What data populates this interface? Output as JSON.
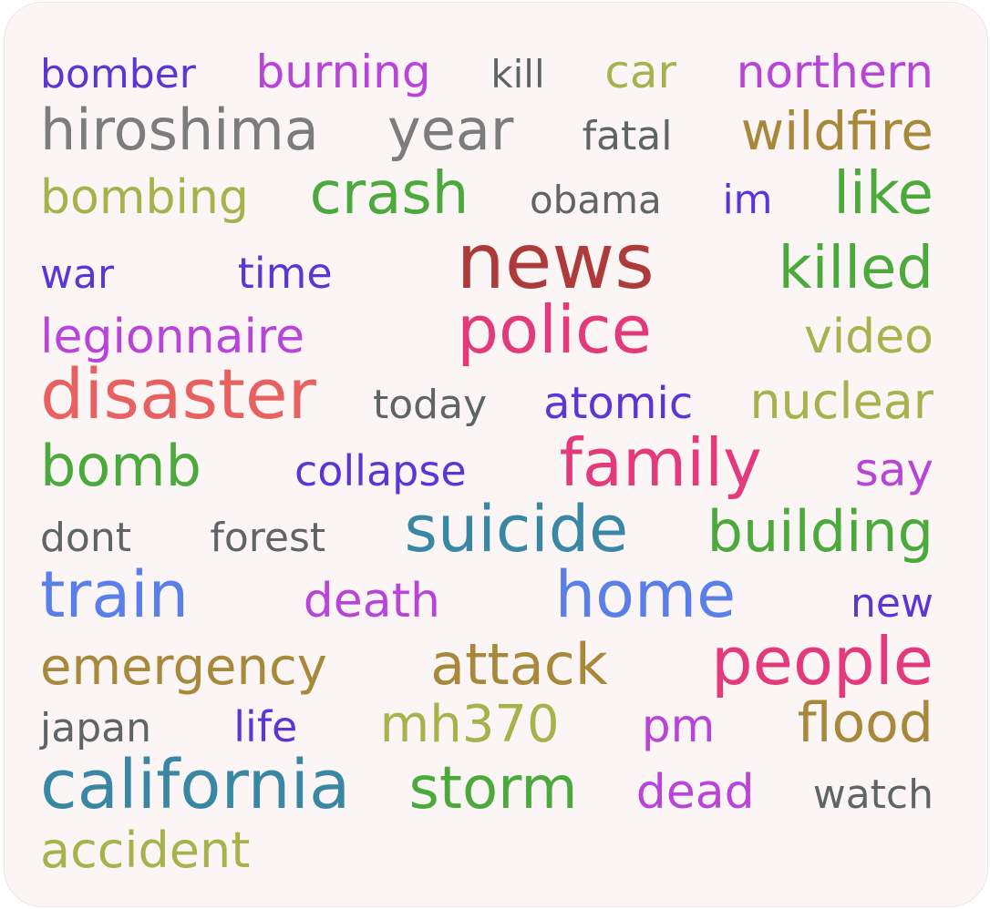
{
  "rows": [
    [
      {
        "text": "bomber",
        "color": "#5b35d6"
      },
      {
        "text": "burning",
        "color": "#b844d8"
      },
      {
        "text": "kill",
        "color": "#5f6466"
      },
      {
        "text": "car",
        "color": "#aab04c"
      },
      {
        "text": "northern",
        "color": "#b844d8"
      }
    ],
    [
      {
        "text": "hiroshima",
        "color": "#7c7c7c"
      },
      {
        "text": "year",
        "color": "#7c7c7c"
      },
      {
        "text": "fatal",
        "color": "#5f6466"
      },
      {
        "text": "wildfire",
        "color": "#a8893b"
      }
    ],
    [
      {
        "text": "bombing",
        "color": "#aab04c"
      },
      {
        "text": "crash",
        "color": "#4caa3c"
      },
      {
        "text": "obama",
        "color": "#5f6466"
      },
      {
        "text": "im",
        "color": "#5b35d6"
      },
      {
        "text": "like",
        "color": "#4caa3c"
      }
    ],
    [
      {
        "text": "war",
        "color": "#5b35d6"
      },
      {
        "text": "time",
        "color": "#5b35d6"
      },
      {
        "text": "news",
        "color": "#ac3b39"
      },
      {
        "text": "killed",
        "color": "#4caa3c"
      }
    ],
    [
      {
        "text": "legionnaire",
        "color": "#b844d8"
      },
      {
        "text": "police",
        "color": "#e23a7b"
      },
      {
        "text": "video",
        "color": "#aab04c"
      }
    ],
    [
      {
        "text": "disaster",
        "color": "#e86161"
      },
      {
        "text": "today",
        "color": "#5f6466"
      },
      {
        "text": "atomic",
        "color": "#5b35d6"
      },
      {
        "text": "nuclear",
        "color": "#aab04c"
      }
    ],
    [
      {
        "text": "bomb",
        "color": "#4caa3c"
      },
      {
        "text": "collapse",
        "color": "#5b35d6"
      },
      {
        "text": "family",
        "color": "#e23a7b"
      },
      {
        "text": "say",
        "color": "#b844d8"
      }
    ],
    [
      {
        "text": "dont",
        "color": "#5f6466"
      },
      {
        "text": "forest",
        "color": "#5f6466"
      },
      {
        "text": "suicide",
        "color": "#3a87a3"
      },
      {
        "text": "building",
        "color": "#4caa3c"
      }
    ],
    [
      {
        "text": "train",
        "color": "#5a7fe8"
      },
      {
        "text": "death",
        "color": "#b844d8"
      },
      {
        "text": "home",
        "color": "#5a7fe8"
      },
      {
        "text": "new",
        "color": "#5b35d6"
      }
    ],
    [
      {
        "text": "emergency",
        "color": "#a8893b"
      },
      {
        "text": "attack",
        "color": "#a8893b"
      },
      {
        "text": "people",
        "color": "#e23a7b"
      }
    ],
    [
      {
        "text": "japan",
        "color": "#5f6466"
      },
      {
        "text": "life",
        "color": "#5b35d6"
      },
      {
        "text": "mh370",
        "color": "#aab04c"
      },
      {
        "text": "pm",
        "color": "#b844d8"
      },
      {
        "text": "flood",
        "color": "#a8893b"
      }
    ],
    [
      {
        "text": "california",
        "color": "#3a87a3"
      },
      {
        "text": "storm",
        "color": "#4caa3c"
      },
      {
        "text": "dead",
        "color": "#b844d8"
      },
      {
        "text": "watch",
        "color": "#5f6466"
      }
    ],
    [
      {
        "text": "accident",
        "color": "#aab04c"
      }
    ]
  ]
}
